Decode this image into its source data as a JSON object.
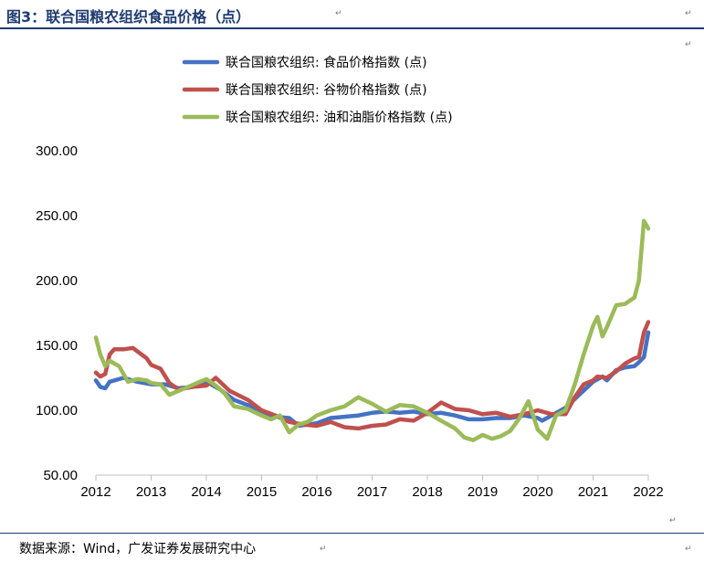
{
  "header": {
    "title": "图3：联合国粮农组织食品价格（点）"
  },
  "source": {
    "text": "数据来源：Wind，广发证券发展研究中心"
  },
  "marks": {
    "return": "↵"
  },
  "colors": {
    "food": "#4472c4",
    "cereal": "#c0504d",
    "oil": "#9bbb59",
    "rule": "#1f3b70",
    "axis": "#bfbfbf"
  },
  "chart_data": {
    "type": "line",
    "title": "",
    "xlabel": "",
    "ylabel": "",
    "ylim": [
      50,
      300
    ],
    "xlim": [
      2012,
      2022
    ],
    "yticks": [
      "50.00",
      "100.00",
      "150.00",
      "200.00",
      "250.00",
      "300.00"
    ],
    "xticks": [
      "2012",
      "2013",
      "2014",
      "2015",
      "2016",
      "2017",
      "2018",
      "2019",
      "2020",
      "2021",
      "2022"
    ],
    "grid": false,
    "legend_position": "top-center",
    "series": [
      {
        "name": "联合国粮农组织: 食品价格指数 (点)",
        "color": "#4472c4",
        "x": [
          2012.0,
          2012.08,
          2012.17,
          2012.25,
          2012.5,
          2012.75,
          2013.0,
          2013.25,
          2013.5,
          2013.75,
          2014.0,
          2014.25,
          2014.5,
          2014.75,
          2015.0,
          2015.25,
          2015.5,
          2015.67,
          2015.83,
          2016.0,
          2016.25,
          2016.5,
          2016.75,
          2017.0,
          2017.25,
          2017.5,
          2017.75,
          2018.0,
          2018.25,
          2018.5,
          2018.75,
          2019.0,
          2019.25,
          2019.5,
          2019.75,
          2020.0,
          2020.08,
          2020.25,
          2020.5,
          2020.75,
          2021.0,
          2021.17,
          2021.25,
          2021.42,
          2021.58,
          2021.75,
          2021.83,
          2021.92,
          2022.0
        ],
        "values": [
          123,
          118,
          117,
          122,
          125,
          122,
          120,
          120,
          117,
          118,
          122,
          116,
          108,
          104,
          98,
          95,
          94,
          88,
          89,
          90,
          94,
          95,
          96,
          98,
          99,
          98,
          99,
          97,
          98,
          96,
          93,
          93,
          94,
          94,
          96,
          94,
          92,
          96,
          102,
          112,
          122,
          126,
          123,
          131,
          133,
          134,
          137,
          141,
          160
        ]
      },
      {
        "name": "联合国粮农组织: 谷物价格指数 (点)",
        "color": "#c0504d",
        "x": [
          2012.0,
          2012.08,
          2012.17,
          2012.25,
          2012.33,
          2012.5,
          2012.67,
          2012.92,
          2013.0,
          2013.17,
          2013.33,
          2013.5,
          2013.75,
          2014.0,
          2014.17,
          2014.42,
          2014.75,
          2015.0,
          2015.25,
          2015.5,
          2015.75,
          2016.0,
          2016.25,
          2016.5,
          2016.75,
          2017.0,
          2017.25,
          2017.5,
          2017.75,
          2018.0,
          2018.25,
          2018.5,
          2018.75,
          2019.0,
          2019.25,
          2019.5,
          2019.75,
          2020.0,
          2020.25,
          2020.5,
          2020.67,
          2020.83,
          2021.0,
          2021.08,
          2021.25,
          2021.42,
          2021.58,
          2021.75,
          2021.83,
          2021.92,
          2022.0
        ],
        "values": [
          129,
          126,
          128,
          143,
          147,
          147,
          148,
          140,
          135,
          132,
          121,
          116,
          118,
          119,
          125,
          115,
          108,
          100,
          96,
          91,
          89,
          88,
          91,
          87,
          86,
          88,
          89,
          93,
          92,
          98,
          106,
          101,
          100,
          97,
          98,
          95,
          97,
          100,
          97,
          97,
          110,
          120,
          123,
          126,
          125,
          130,
          136,
          140,
          141,
          160,
          168
        ]
      },
      {
        "name": "联合国粮农组织: 油和油脂价格指数 (点)",
        "color": "#9bbb59",
        "x": [
          2012.0,
          2012.08,
          2012.17,
          2012.25,
          2012.42,
          2012.58,
          2012.75,
          2012.92,
          2013.0,
          2013.17,
          2013.33,
          2013.5,
          2013.67,
          2013.83,
          2014.0,
          2014.17,
          2014.33,
          2014.5,
          2014.75,
          2015.0,
          2015.17,
          2015.33,
          2015.5,
          2015.67,
          2015.83,
          2016.0,
          2016.25,
          2016.5,
          2016.75,
          2017.0,
          2017.25,
          2017.5,
          2017.75,
          2018.0,
          2018.25,
          2018.5,
          2018.67,
          2018.83,
          2019.0,
          2019.17,
          2019.33,
          2019.5,
          2019.67,
          2019.83,
          2020.0,
          2020.17,
          2020.33,
          2020.5,
          2020.67,
          2020.83,
          2021.0,
          2021.08,
          2021.17,
          2021.25,
          2021.42,
          2021.58,
          2021.75,
          2021.83,
          2021.92,
          2022.0
        ],
        "values": [
          156,
          143,
          134,
          138,
          134,
          122,
          124,
          123,
          121,
          120,
          112,
          115,
          118,
          121,
          124,
          119,
          113,
          103,
          101,
          96,
          93,
          96,
          83,
          89,
          91,
          96,
          100,
          103,
          110,
          105,
          99,
          104,
          103,
          98,
          92,
          86,
          79,
          77,
          81,
          78,
          80,
          84,
          94,
          107,
          85,
          78,
          96,
          100,
          120,
          143,
          165,
          172,
          157,
          164,
          181,
          182,
          187,
          200,
          246,
          240
        ]
      }
    ]
  }
}
